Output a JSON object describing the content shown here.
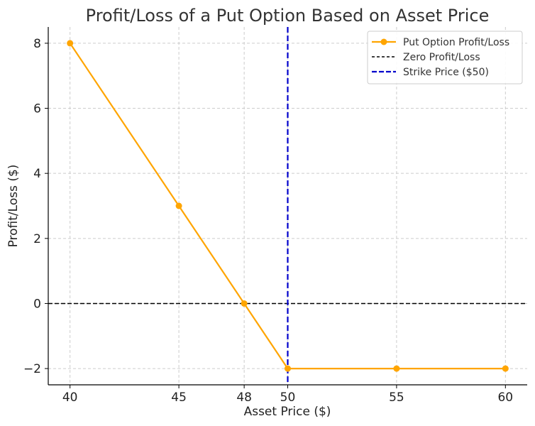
{
  "chart_data": {
    "type": "line",
    "title": "Profit/Loss of a Put Option Based on Asset Price",
    "xlabel": "Asset Price ($)",
    "ylabel": "Profit/Loss ($)",
    "xlim": [
      39,
      61
    ],
    "ylim": [
      -2.5,
      8.5
    ],
    "xticks": [
      40,
      45,
      48,
      50,
      55,
      60
    ],
    "yticks": [
      -2,
      0,
      2,
      4,
      6,
      8
    ],
    "ytick_labels": [
      "−2",
      "0",
      "2",
      "4",
      "6",
      "8"
    ],
    "grid": true,
    "legend_position": "top-right",
    "series": [
      {
        "name": "Put Option Profit/Loss",
        "color": "#FFA500",
        "marker": "circle",
        "x": [
          40,
          45,
          48,
          50,
          55,
          60
        ],
        "y": [
          8,
          3,
          0,
          -2,
          -2,
          -2
        ]
      }
    ],
    "reference_lines": [
      {
        "name": "Zero Profit/Loss",
        "orientation": "horizontal",
        "value": 0,
        "color": "#000000",
        "style": "dashed"
      },
      {
        "name": "Strike Price ($50)",
        "orientation": "vertical",
        "value": 50,
        "color": "#0000CC",
        "style": "dashed"
      }
    ]
  }
}
